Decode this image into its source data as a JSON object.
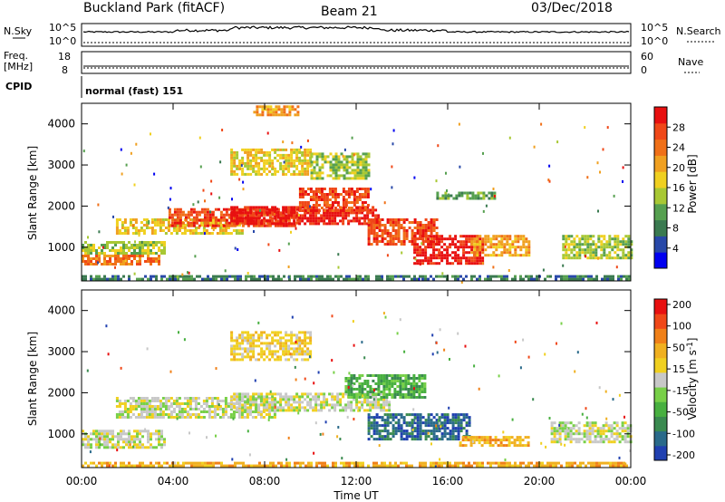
{
  "header": {
    "station": "Buckland Park (fitACF)",
    "beam": "Beam 21",
    "date": "03/Dec/2018"
  },
  "top_panel": {
    "nsky_label": "N.Sky",
    "nsky_top": "10^5",
    "nsky_bottom": "10^0",
    "nsearch_top": "10^5",
    "nsearch_bottom": "10^0",
    "nsearch_label": "N.Search",
    "freq_label_1": "Freq.",
    "freq_label_2": "[MHz]",
    "freq_top": "18",
    "freq_bottom": "8",
    "nave_top": "60",
    "nave_bottom": "0",
    "nave_label": "Nave",
    "cpid_label": "CPID",
    "cpid_value": "normal (fast) 151"
  },
  "chart_data": [
    {
      "type": "heatmap",
      "name": "power-panel",
      "ylabel": "Slant Range [km]",
      "ylim": [
        180,
        4500
      ],
      "xlim": [
        0,
        24
      ],
      "yticks": [
        "1000",
        "2000",
        "3000",
        "4000"
      ],
      "colorbar": {
        "label": "Power [dB]",
        "ticks": [
          "4",
          "8",
          "12",
          "16",
          "20",
          "24",
          "28"
        ],
        "colors": [
          "#0000f0",
          "#2848a8",
          "#3a7a50",
          "#56a050",
          "#a8c834",
          "#f0d020",
          "#f0a020",
          "#f07018",
          "#f04818",
          "#e81010"
        ],
        "range": [
          0,
          32
        ]
      },
      "regions": [
        {
          "t0": 0.0,
          "t1": 24.0,
          "r0": 200,
          "r1": 320,
          "level": 2
        },
        {
          "t0": 0.0,
          "t1": 3.4,
          "r0": 600,
          "r1": 820,
          "level": 7
        },
        {
          "t0": 0.0,
          "t1": 3.6,
          "r0": 880,
          "r1": 1150,
          "level": 4
        },
        {
          "t0": 1.5,
          "t1": 7.0,
          "r0": 1350,
          "r1": 1700,
          "level": 5
        },
        {
          "t0": 3.8,
          "t1": 9.5,
          "r0": 1500,
          "r1": 1950,
          "level": 8
        },
        {
          "t0": 6.5,
          "t1": 13.0,
          "r0": 1550,
          "r1": 2000,
          "level": 9
        },
        {
          "t0": 9.5,
          "t1": 12.5,
          "r0": 1900,
          "r1": 2450,
          "level": 8
        },
        {
          "t0": 12.5,
          "t1": 15.5,
          "r0": 1100,
          "r1": 1700,
          "level": 8
        },
        {
          "t0": 14.5,
          "t1": 17.5,
          "r0": 600,
          "r1": 1300,
          "level": 9
        },
        {
          "t0": 17.0,
          "t1": 19.5,
          "r0": 800,
          "r1": 1300,
          "level": 6
        },
        {
          "t0": 21.0,
          "t1": 24.0,
          "r0": 750,
          "r1": 1300,
          "level": 4
        },
        {
          "t0": 6.5,
          "t1": 10.0,
          "r0": 2800,
          "r1": 3400,
          "level": 5
        },
        {
          "t0": 7.5,
          "t1": 9.5,
          "r0": 4200,
          "r1": 4450,
          "level": 6
        },
        {
          "t0": 10.0,
          "t1": 12.5,
          "r0": 2700,
          "r1": 3300,
          "level": 4
        },
        {
          "t0": 15.5,
          "t1": 18.0,
          "r0": 2200,
          "r1": 2350,
          "level": 3
        }
      ]
    },
    {
      "type": "heatmap",
      "name": "velocity-panel",
      "ylabel": "Slant Range [km]",
      "xlabel": "Time UT",
      "ylim": [
        180,
        4500
      ],
      "xlim": [
        0,
        24
      ],
      "yticks": [
        "1000",
        "2000",
        "3000",
        "4000"
      ],
      "xticks": [
        "00:00",
        "04:00",
        "08:00",
        "12:00",
        "16:00",
        "20:00",
        "00:00"
      ],
      "colorbar": {
        "label": "Velocity [m s^-1]",
        "ticks": [
          "200",
          "100",
          "50",
          "15",
          "-15",
          "-50",
          "-100",
          "-200"
        ],
        "colors": [
          "#2040b0",
          "#2a6a8a",
          "#3a8a50",
          "#48b040",
          "#78d048",
          "#c8c8c8",
          "#f0d020",
          "#f0b020",
          "#f08018",
          "#f04818",
          "#e81010"
        ],
        "range": [
          -200,
          250
        ]
      },
      "regions": [
        {
          "t0": 0.0,
          "t1": 24.0,
          "r0": 200,
          "r1": 320,
          "level": 7
        },
        {
          "t0": 0.0,
          "t1": 3.6,
          "r0": 650,
          "r1": 1100,
          "level": 5
        },
        {
          "t0": 1.5,
          "t1": 8.5,
          "r0": 1400,
          "r1": 1900,
          "level": 5
        },
        {
          "t0": 6.5,
          "t1": 13.5,
          "r0": 1550,
          "r1": 2000,
          "level": 5
        },
        {
          "t0": 12.5,
          "t1": 17.0,
          "r0": 900,
          "r1": 1500,
          "level": 1
        },
        {
          "t0": 11.5,
          "t1": 15.0,
          "r0": 1900,
          "r1": 2450,
          "level": 3
        },
        {
          "t0": 20.5,
          "t1": 24.0,
          "r0": 800,
          "r1": 1300,
          "level": 5
        },
        {
          "t0": 16.5,
          "t1": 19.5,
          "r0": 700,
          "r1": 950,
          "level": 7
        },
        {
          "t0": 6.5,
          "t1": 10.0,
          "r0": 2800,
          "r1": 3500,
          "level": 6
        }
      ]
    }
  ]
}
